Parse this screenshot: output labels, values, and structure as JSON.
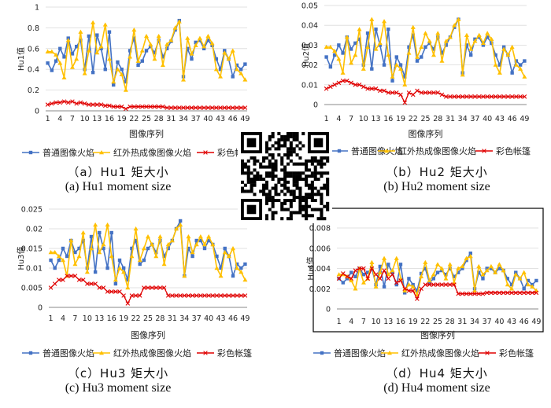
{
  "colors": {
    "s1": "#4472C4",
    "s2": "#FFC000",
    "s3": "#E00000",
    "grid": "#d9d9d9",
    "axis": "#888888",
    "qr": "#000000"
  },
  "icons": {
    "qr": "qr-code-icon"
  },
  "chart_data": [
    {
      "type": "line",
      "id": "hu1",
      "ylabel": "Hu1值",
      "xlabel": "图像序列",
      "ylim": [
        0,
        1
      ],
      "yticks": [
        "0",
        "0.2",
        "0.4",
        "0.6",
        "0.8",
        "1"
      ],
      "ytick_values": [
        0,
        0.2,
        0.4,
        0.6,
        0.8,
        1
      ],
      "xticks": [
        "1",
        "4",
        "7",
        "10",
        "13",
        "16",
        "19",
        "22",
        "25",
        "28",
        "31",
        "34",
        "37",
        "40",
        "43",
        "46",
        "49"
      ],
      "legend": [
        "普通图像火焰",
        "红外热成像图像火焰",
        "彩色帐篷"
      ],
      "caption_cn": "（a）Hu1 矩大小",
      "caption_en": "(a) Hu1 moment size",
      "series": [
        {
          "name": "普通图像火焰",
          "values": [
            0.46,
            0.39,
            0.48,
            0.6,
            0.52,
            0.7,
            0.55,
            0.62,
            0.68,
            0.4,
            0.72,
            0.37,
            0.73,
            0.6,
            0.4,
            0.76,
            0.25,
            0.47,
            0.4,
            0.28,
            0.58,
            0.7,
            0.44,
            0.48,
            0.58,
            0.62,
            0.56,
            0.68,
            0.52,
            0.6,
            0.67,
            0.78,
            0.87,
            0.33,
            0.6,
            0.5,
            0.66,
            0.68,
            0.6,
            0.68,
            0.63,
            0.5,
            0.4,
            0.58,
            0.5,
            0.33,
            0.44,
            0.4,
            0.45
          ]
        },
        {
          "name": "红外热成像图像火焰",
          "values": [
            0.57,
            0.57,
            0.54,
            0.46,
            0.32,
            0.68,
            0.42,
            0.5,
            0.76,
            0.36,
            0.58,
            0.85,
            0.56,
            0.62,
            0.83,
            0.5,
            0.28,
            0.4,
            0.35,
            0.2,
            0.52,
            0.78,
            0.48,
            0.58,
            0.72,
            0.64,
            0.5,
            0.72,
            0.44,
            0.64,
            0.68,
            0.8,
            0.86,
            0.3,
            0.7,
            0.55,
            0.63,
            0.7,
            0.62,
            0.72,
            0.65,
            0.4,
            0.33,
            0.56,
            0.5,
            0.58,
            0.4,
            0.36,
            0.3
          ]
        },
        {
          "name": "彩色帐篷",
          "values": [
            0.06,
            0.07,
            0.08,
            0.08,
            0.09,
            0.08,
            0.09,
            0.07,
            0.08,
            0.07,
            0.06,
            0.06,
            0.06,
            0.06,
            0.05,
            0.05,
            0.04,
            0.04,
            0.04,
            0.02,
            0.04,
            0.04,
            0.04,
            0.04,
            0.04,
            0.04,
            0.04,
            0.04,
            0.04,
            0.03,
            0.03,
            0.03,
            0.03,
            0.03,
            0.03,
            0.03,
            0.03,
            0.03,
            0.03,
            0.03,
            0.03,
            0.03,
            0.03,
            0.03,
            0.03,
            0.03,
            0.03,
            0.03,
            0.03
          ]
        }
      ]
    },
    {
      "type": "line",
      "id": "hu2",
      "ylabel": "Hu2值",
      "xlabel": "图像序列",
      "ylim": [
        0,
        0.05
      ],
      "yticks": [
        "0",
        "0.01",
        "0.02",
        "0.03",
        "0.04",
        "0.05"
      ],
      "ytick_values": [
        0,
        0.01,
        0.02,
        0.03,
        0.04,
        0.05
      ],
      "xticks": [
        "1",
        "4",
        "7",
        "10",
        "13",
        "16",
        "19",
        "22",
        "25",
        "28",
        "31",
        "34",
        "37",
        "40",
        "43",
        "46",
        "49"
      ],
      "legend": [
        "普通图像火焰",
        "红外热成像图像火焰",
        "彩色帐篷"
      ],
      "caption_cn": "（b）Hu2 矩大小",
      "caption_en": "(b) Hu2 moment size",
      "series": [
        {
          "name": "普通图像火焰",
          "values": [
            0.024,
            0.019,
            0.025,
            0.03,
            0.026,
            0.034,
            0.028,
            0.031,
            0.033,
            0.02,
            0.036,
            0.018,
            0.038,
            0.03,
            0.02,
            0.038,
            0.012,
            0.024,
            0.02,
            0.014,
            0.029,
            0.035,
            0.022,
            0.024,
            0.029,
            0.031,
            0.028,
            0.034,
            0.026,
            0.03,
            0.034,
            0.039,
            0.043,
            0.016,
            0.03,
            0.025,
            0.033,
            0.034,
            0.03,
            0.034,
            0.031,
            0.025,
            0.02,
            0.029,
            0.025,
            0.016,
            0.022,
            0.02,
            0.022
          ]
        },
        {
          "name": "红外热成像图像火焰",
          "values": [
            0.029,
            0.029,
            0.027,
            0.023,
            0.016,
            0.034,
            0.021,
            0.025,
            0.038,
            0.018,
            0.029,
            0.043,
            0.028,
            0.031,
            0.042,
            0.025,
            0.014,
            0.02,
            0.018,
            0.01,
            0.026,
            0.039,
            0.024,
            0.029,
            0.036,
            0.032,
            0.025,
            0.036,
            0.022,
            0.032,
            0.034,
            0.04,
            0.043,
            0.015,
            0.035,
            0.028,
            0.032,
            0.035,
            0.031,
            0.036,
            0.033,
            0.02,
            0.016,
            0.028,
            0.025,
            0.029,
            0.02,
            0.018,
            0.014
          ]
        },
        {
          "name": "彩色帐篷",
          "values": [
            0.008,
            0.009,
            0.01,
            0.011,
            0.012,
            0.012,
            0.011,
            0.01,
            0.01,
            0.009,
            0.008,
            0.008,
            0.008,
            0.007,
            0.007,
            0.006,
            0.006,
            0.006,
            0.005,
            0.001,
            0.006,
            0.005,
            0.007,
            0.006,
            0.006,
            0.006,
            0.006,
            0.006,
            0.005,
            0.004,
            0.004,
            0.004,
            0.004,
            0.004,
            0.004,
            0.004,
            0.004,
            0.004,
            0.004,
            0.004,
            0.004,
            0.004,
            0.004,
            0.004,
            0.004,
            0.004,
            0.004,
            0.004,
            0.004
          ]
        }
      ]
    },
    {
      "type": "line",
      "id": "hu3",
      "ylabel": "Hu3值",
      "xlabel": "图像序列",
      "ylim": [
        0,
        0.025
      ],
      "yticks": [
        "0",
        "0.005",
        "0.01",
        "0.015",
        "0.02",
        "0.025"
      ],
      "ytick_values": [
        0,
        0.005,
        0.01,
        0.015,
        0.02,
        0.025
      ],
      "xticks": [
        "1",
        "4",
        "7",
        "10",
        "13",
        "16",
        "19",
        "22",
        "25",
        "28",
        "31",
        "34",
        "37",
        "40",
        "43",
        "46",
        "49"
      ],
      "legend": [
        "普通图像火焰",
        "红外热成像图像火焰",
        "彩色帐篷"
      ],
      "caption_cn": "（c）Hu3 矩大小",
      "caption_en": "(c) Hu3 moment size",
      "series": [
        {
          "name": "普通图像火焰",
          "values": [
            0.012,
            0.01,
            0.012,
            0.015,
            0.013,
            0.017,
            0.014,
            0.015,
            0.017,
            0.01,
            0.018,
            0.009,
            0.019,
            0.015,
            0.01,
            0.019,
            0.006,
            0.012,
            0.01,
            0.007,
            0.015,
            0.017,
            0.011,
            0.012,
            0.015,
            0.016,
            0.014,
            0.017,
            0.013,
            0.015,
            0.017,
            0.02,
            0.022,
            0.008,
            0.015,
            0.013,
            0.017,
            0.017,
            0.015,
            0.017,
            0.016,
            0.013,
            0.01,
            0.015,
            0.013,
            0.008,
            0.011,
            0.01,
            0.011
          ]
        },
        {
          "name": "红外热成像图像火焰",
          "values": [
            0.014,
            0.014,
            0.013,
            0.012,
            0.008,
            0.017,
            0.011,
            0.013,
            0.019,
            0.009,
            0.015,
            0.021,
            0.014,
            0.016,
            0.021,
            0.013,
            0.007,
            0.01,
            0.009,
            0.005,
            0.013,
            0.02,
            0.012,
            0.015,
            0.018,
            0.016,
            0.013,
            0.018,
            0.011,
            0.016,
            0.017,
            0.02,
            0.021,
            0.008,
            0.018,
            0.014,
            0.016,
            0.018,
            0.016,
            0.018,
            0.016,
            0.01,
            0.008,
            0.014,
            0.013,
            0.015,
            0.01,
            0.009,
            0.007
          ]
        },
        {
          "name": "彩色帐篷",
          "values": [
            0.005,
            0.006,
            0.007,
            0.007,
            0.008,
            0.008,
            0.008,
            0.007,
            0.007,
            0.006,
            0.006,
            0.006,
            0.005,
            0.005,
            0.004,
            0.004,
            0.004,
            0.004,
            0.003,
            0.001,
            0.003,
            0.003,
            0.003,
            0.005,
            0.005,
            0.005,
            0.005,
            0.005,
            0.005,
            0.003,
            0.003,
            0.003,
            0.003,
            0.003,
            0.003,
            0.003,
            0.003,
            0.003,
            0.003,
            0.003,
            0.003,
            0.003,
            0.003,
            0.003,
            0.003,
            0.003,
            0.003,
            0.003,
            0.003
          ]
        }
      ]
    },
    {
      "type": "line",
      "id": "hu4",
      "ylabel": "Hu4值",
      "xlabel": "图像序列",
      "ylim": [
        0,
        0.008
      ],
      "yticks": [
        "0",
        "0.002",
        "0.004",
        "0.006",
        "0.008"
      ],
      "ytick_values": [
        0,
        0.002,
        0.004,
        0.006,
        0.008
      ],
      "xticks": [
        "1",
        "4",
        "7",
        "10",
        "13",
        "16",
        "19",
        "22",
        "25",
        "28",
        "31",
        "34",
        "37",
        "40",
        "43",
        "46",
        "49"
      ],
      "legend": [
        "普通图像火焰",
        "红外热成像图像火焰",
        "彩色帐篷"
      ],
      "caption_cn": "（d）Hu4 矩大小",
      "caption_en": "(d) Hu4 moment size",
      "series": [
        {
          "name": "普通图像火焰",
          "values": [
            0.003,
            0.0026,
            0.003,
            0.0036,
            0.0032,
            0.004,
            0.0034,
            0.0036,
            0.004,
            0.0024,
            0.0042,
            0.0022,
            0.0044,
            0.0036,
            0.0024,
            0.0044,
            0.0016,
            0.003,
            0.0024,
            0.0018,
            0.0035,
            0.004,
            0.0026,
            0.003,
            0.0036,
            0.0038,
            0.0034,
            0.004,
            0.0032,
            0.0036,
            0.004,
            0.0048,
            0.0055,
            0.002,
            0.0036,
            0.003,
            0.004,
            0.004,
            0.0036,
            0.004,
            0.0038,
            0.003,
            0.0024,
            0.0036,
            0.003,
            0.002,
            0.0028,
            0.0024,
            0.0028
          ]
        },
        {
          "name": "红外热成像图像火焰",
          "values": [
            0.0034,
            0.0034,
            0.0032,
            0.0028,
            0.002,
            0.004,
            0.0026,
            0.003,
            0.0046,
            0.0022,
            0.0036,
            0.005,
            0.0034,
            0.0038,
            0.005,
            0.003,
            0.0018,
            0.0024,
            0.0022,
            0.0014,
            0.0032,
            0.0046,
            0.0028,
            0.0034,
            0.0044,
            0.004,
            0.003,
            0.0044,
            0.0026,
            0.004,
            0.0042,
            0.005,
            0.0052,
            0.0018,
            0.0042,
            0.0034,
            0.0038,
            0.0042,
            0.0036,
            0.0044,
            0.0038,
            0.0024,
            0.002,
            0.0034,
            0.003,
            0.0036,
            0.0024,
            0.0022,
            0.0018
          ]
        },
        {
          "name": "彩色帐篷",
          "values": [
            0.003,
            0.0035,
            0.0032,
            0.003,
            0.0038,
            0.004,
            0.004,
            0.003,
            0.004,
            0.0034,
            0.003,
            0.0038,
            0.003,
            0.0034,
            0.0026,
            0.0028,
            0.002,
            0.0018,
            0.0018,
            0.001,
            0.002,
            0.0024,
            0.0024,
            0.0024,
            0.0024,
            0.0024,
            0.0024,
            0.0024,
            0.0024,
            0.0015,
            0.0015,
            0.0015,
            0.0015,
            0.0015,
            0.0015,
            0.0015,
            0.0016,
            0.0016,
            0.0016,
            0.0016,
            0.0016,
            0.0016,
            0.0016,
            0.0016,
            0.0016,
            0.0016,
            0.0016,
            0.0016,
            0.0016
          ]
        }
      ]
    }
  ]
}
